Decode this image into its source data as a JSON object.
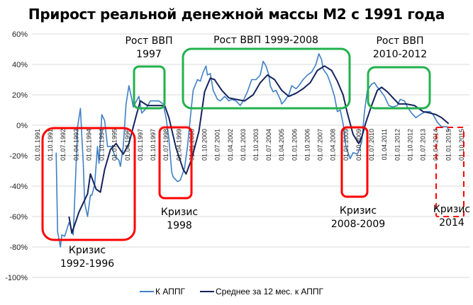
{
  "chart_data": {
    "type": "line",
    "title": "Прирост реальной денежной массы М2 с 1991 года",
    "xlabel": "",
    "ylabel": "",
    "ylim": [
      -100,
      60
    ],
    "y_ticks": [
      "60%",
      "40%",
      "20%",
      "0%",
      "-20%",
      "-40%",
      "-60%",
      "-80%",
      "-100%"
    ],
    "y_tick_values": [
      60,
      40,
      20,
      0,
      -20,
      -40,
      -60,
      -80,
      -100
    ],
    "x_range": [
      "1991-01",
      "2015-10"
    ],
    "x_ticks": [
      "01.01.1991",
      "01.10.1991",
      "01.07.1992",
      "01.04.1993",
      "01.01.1994",
      "01.10.1994",
      "01.07.1995",
      "01.04.1996",
      "01.01.1997",
      "01.10.1997",
      "01.07.1998",
      "01.04.1999",
      "01.01.2000",
      "01.10.2000",
      "01.07.2001",
      "01.04.2002",
      "01.01.2003",
      "01.10.2003",
      "01.07.2004",
      "01.04.2005",
      "01.01.2006",
      "01.10.2006",
      "01.07.2007",
      "01.04.2008",
      "01.01.2009",
      "01.10.2009",
      "01.07.2010",
      "01.04.2011",
      "01.01.2012",
      "01.10.2012",
      "01.07.2013",
      "01.04.2014",
      "01.01.2015",
      "01.10.2015"
    ],
    "grid": "horizontal",
    "legend_placement": "bottom",
    "series": [
      {
        "name": "К АППГ",
        "color": "#3f7fc4",
        "points": [
          [
            "1992-02",
            -18
          ],
          [
            "1992-03",
            -70
          ],
          [
            "1992-05",
            -80
          ],
          [
            "1992-06",
            -72
          ],
          [
            "1992-08",
            -73
          ],
          [
            "1992-11",
            -64
          ],
          [
            "1992-12",
            -66
          ],
          [
            "1993-02",
            -72
          ],
          [
            "1993-04",
            -25
          ],
          [
            "1993-05",
            -1
          ],
          [
            "1993-07",
            11
          ],
          [
            "1993-09",
            -25
          ],
          [
            "1993-10",
            -51
          ],
          [
            "1993-12",
            -60
          ],
          [
            "1994-02",
            -46
          ],
          [
            "1994-03",
            -46
          ],
          [
            "1994-05",
            -39
          ],
          [
            "1994-07",
            -14
          ],
          [
            "1994-08",
            -25
          ],
          [
            "1994-10",
            7
          ],
          [
            "1994-12",
            3
          ],
          [
            "1995-02",
            -14
          ],
          [
            "1995-05",
            -14
          ],
          [
            "1995-07",
            -20
          ],
          [
            "1995-10",
            -23
          ],
          [
            "1995-11",
            -27
          ],
          [
            "1996-01",
            -14
          ],
          [
            "1996-03",
            14
          ],
          [
            "1996-05",
            26
          ],
          [
            "1996-07",
            17
          ],
          [
            "1996-08",
            12
          ],
          [
            "1996-12",
            19
          ],
          [
            "1997-02",
            8
          ],
          [
            "1997-05",
            11
          ],
          [
            "1997-08",
            16
          ],
          [
            "1997-11",
            16
          ],
          [
            "1998-02",
            16
          ],
          [
            "1998-05",
            14
          ],
          [
            "1998-07",
            5
          ],
          [
            "1998-09",
            -9
          ],
          [
            "1998-11",
            -31
          ],
          [
            "1998-12",
            -34
          ],
          [
            "1999-03",
            -37
          ],
          [
            "1999-05",
            -36
          ],
          [
            "1999-08",
            -28
          ],
          [
            "1999-10",
            -14
          ],
          [
            "1999-12",
            5
          ],
          [
            "2000-02",
            23
          ],
          [
            "2000-05",
            30
          ],
          [
            "2000-07",
            29
          ],
          [
            "2000-09",
            35
          ],
          [
            "2000-11",
            39
          ],
          [
            "2000-12",
            33
          ],
          [
            "2001-02",
            34
          ],
          [
            "2001-04",
            23
          ],
          [
            "2001-05",
            21
          ],
          [
            "2001-07",
            17
          ],
          [
            "2001-09",
            16
          ],
          [
            "2001-12",
            19
          ],
          [
            "2002-03",
            16
          ],
          [
            "2002-05",
            17
          ],
          [
            "2002-08",
            16
          ],
          [
            "2002-11",
            13
          ],
          [
            "2003-01",
            16
          ],
          [
            "2003-04",
            22
          ],
          [
            "2003-07",
            30
          ],
          [
            "2003-10",
            30
          ],
          [
            "2004-01",
            33
          ],
          [
            "2004-03",
            42
          ],
          [
            "2004-05",
            39
          ],
          [
            "2004-07",
            33
          ],
          [
            "2004-08",
            26
          ],
          [
            "2004-10",
            22
          ],
          [
            "2004-12",
            23
          ],
          [
            "2005-03",
            17
          ],
          [
            "2005-04",
            14
          ],
          [
            "2005-06",
            16
          ],
          [
            "2005-09",
            20
          ],
          [
            "2005-11",
            26
          ],
          [
            "2006-02",
            24
          ],
          [
            "2006-04",
            26
          ],
          [
            "2006-07",
            30
          ],
          [
            "2006-10",
            33
          ],
          [
            "2007-01",
            35
          ],
          [
            "2007-04",
            40
          ],
          [
            "2007-06",
            47
          ],
          [
            "2007-08",
            43
          ],
          [
            "2007-09",
            37
          ],
          [
            "2007-12",
            33
          ],
          [
            "2008-02",
            28
          ],
          [
            "2008-05",
            19
          ],
          [
            "2008-07",
            9
          ],
          [
            "2008-09",
            10
          ],
          [
            "2008-11",
            1
          ],
          [
            "2009-01",
            -14
          ],
          [
            "2009-04",
            -22
          ],
          [
            "2009-06",
            -18
          ],
          [
            "2009-09",
            -19
          ],
          [
            "2009-10",
            -17
          ],
          [
            "2009-12",
            -11
          ],
          [
            "2010-02",
            9
          ],
          [
            "2010-04",
            23
          ],
          [
            "2010-07",
            27
          ],
          [
            "2010-09",
            28
          ],
          [
            "2010-11",
            25
          ],
          [
            "2011-01",
            23
          ],
          [
            "2011-04",
            19
          ],
          [
            "2011-07",
            13
          ],
          [
            "2011-10",
            12
          ],
          [
            "2012-01",
            13
          ],
          [
            "2012-03",
            17
          ],
          [
            "2012-06",
            16
          ],
          [
            "2012-08",
            12
          ],
          [
            "2012-11",
            8
          ],
          [
            "2013-02",
            5
          ],
          [
            "2013-05",
            7
          ],
          [
            "2013-09",
            9
          ],
          [
            "2013-12",
            9
          ],
          [
            "2014-02",
            7
          ],
          [
            "2014-05",
            2
          ],
          [
            "2014-08",
            -1
          ],
          [
            "2014-12",
            -1
          ],
          [
            "2015-01",
            -4
          ]
        ]
      },
      {
        "name": "Среднее за 12 мес. к АППГ",
        "color": "#14235c",
        "points": [
          [
            "1992-11",
            -60
          ],
          [
            "1993-01",
            -71
          ],
          [
            "1993-06",
            -57
          ],
          [
            "1993-12",
            -45
          ],
          [
            "1994-02",
            -32
          ],
          [
            "1994-06",
            -42
          ],
          [
            "1994-09",
            -44
          ],
          [
            "1994-12",
            -29
          ],
          [
            "1995-04",
            -16
          ],
          [
            "1995-08",
            -12
          ],
          [
            "1996-01",
            -19
          ],
          [
            "1996-05",
            -12
          ],
          [
            "1996-10",
            6
          ],
          [
            "1997-01",
            16
          ],
          [
            "1997-06",
            13
          ],
          [
            "1998-02",
            13
          ],
          [
            "1998-06",
            13
          ],
          [
            "1998-09",
            5
          ],
          [
            "1999-02",
            -15
          ],
          [
            "1999-07",
            -29
          ],
          [
            "1999-09",
            -32
          ],
          [
            "2000-01",
            -22
          ],
          [
            "2000-06",
            -4
          ],
          [
            "2000-10",
            22
          ],
          [
            "2001-02",
            31
          ],
          [
            "2001-05",
            30
          ],
          [
            "2001-10",
            23
          ],
          [
            "2002-03",
            18
          ],
          [
            "2002-08",
            17
          ],
          [
            "2003-02",
            16
          ],
          [
            "2003-08",
            20
          ],
          [
            "2004-01",
            28
          ],
          [
            "2004-06",
            33
          ],
          [
            "2004-11",
            30
          ],
          [
            "2005-04",
            23
          ],
          [
            "2005-09",
            19
          ],
          [
            "2006-02",
            21
          ],
          [
            "2006-07",
            24
          ],
          [
            "2006-12",
            28
          ],
          [
            "2007-05",
            36
          ],
          [
            "2007-10",
            39
          ],
          [
            "2008-03",
            36
          ],
          [
            "2008-07",
            29
          ],
          [
            "2008-11",
            20
          ],
          [
            "2009-02",
            8
          ],
          [
            "2009-06",
            -6
          ],
          [
            "2009-10",
            -12
          ],
          [
            "2009-12",
            -8
          ],
          [
            "2010-03",
            2
          ],
          [
            "2010-07",
            13
          ],
          [
            "2010-11",
            23
          ],
          [
            "2011-02",
            25
          ],
          [
            "2011-06",
            22
          ],
          [
            "2011-10",
            18
          ],
          [
            "2012-02",
            14
          ],
          [
            "2012-07",
            14
          ],
          [
            "2013-01",
            13
          ],
          [
            "2013-07",
            9
          ],
          [
            "2013-12",
            8
          ],
          [
            "2014-04",
            7
          ],
          [
            "2014-08",
            5
          ],
          [
            "2015-01",
            1
          ]
        ]
      }
    ],
    "annotations": {
      "growth_1997": {
        "line1": "Рост ВВП",
        "line2": "1997",
        "color": "#22b14c"
      },
      "growth_1999_2008": {
        "line1": "Рост ВВП 1999-2008",
        "color": "#22b14c"
      },
      "growth_2010_2012": {
        "line1": "Рост ВВП",
        "line2": "2010-2012",
        "color": "#22b14c"
      },
      "crisis_1992_1996": {
        "line1": "Кризис",
        "line2": "1992-1996",
        "color": "#ff0000"
      },
      "crisis_1998": {
        "line1": "Кризис",
        "line2": "1998",
        "color": "#ff0000"
      },
      "crisis_2008_2009": {
        "line1": "Кризис",
        "line2": "2008-2009",
        "color": "#ff0000"
      },
      "crisis_2014": {
        "line1": "Кризис",
        "line2": "2014",
        "color": "#ff0000",
        "style": "dashed"
      }
    }
  }
}
